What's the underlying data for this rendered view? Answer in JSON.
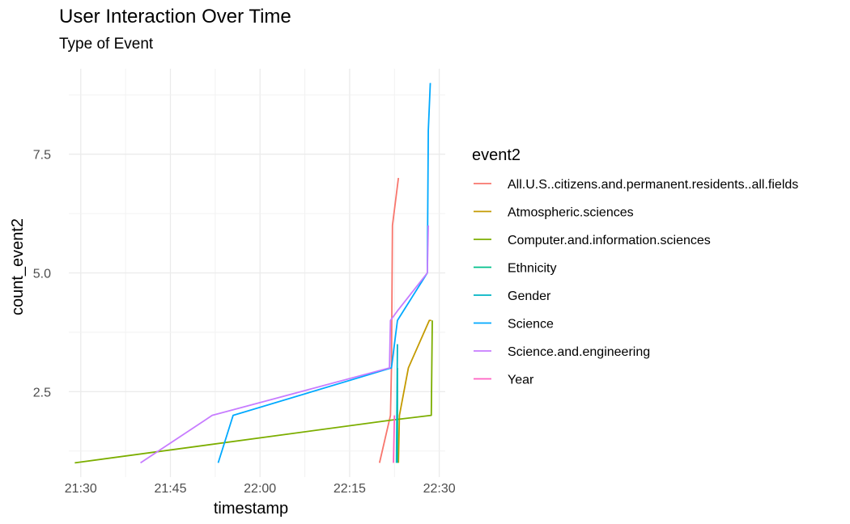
{
  "chart_data": {
    "type": "line",
    "title": "User Interaction Over Time",
    "subtitle": "Type of Event",
    "xlabel": "timestamp",
    "ylabel": "count_event2",
    "x_ticks": [
      "21:30",
      "21:45",
      "22:00",
      "22:15",
      "22:30"
    ],
    "y_ticks": [
      "2.5",
      "5.0",
      "7.5"
    ],
    "xlim": [
      "21:28",
      "22:31"
    ],
    "ylim": [
      0.7,
      9.3
    ],
    "grid": true,
    "legend": {
      "title": "event2",
      "position": "right",
      "entries": [
        {
          "name": "All.U.S..citizens.and.permanent.residents..all.fields",
          "color": "#F8766D"
        },
        {
          "name": "Atmospheric.sciences",
          "color": "#C49A00"
        },
        {
          "name": "Computer.and.information.sciences",
          "color": "#7CAE00"
        },
        {
          "name": "Ethnicity",
          "color": "#00C08B"
        },
        {
          "name": "Gender",
          "color": "#00B4C4"
        },
        {
          "name": "Science",
          "color": "#00A9FF"
        },
        {
          "name": "Science.and.engineering",
          "color": "#C77CFF"
        },
        {
          "name": "Year",
          "color": "#FF61C3"
        }
      ]
    },
    "series": [
      {
        "name": "All.U.S..citizens.and.permanent.residents..all.fields",
        "color": "#F8766D",
        "x": [
          "22:20:00",
          "22:21:50",
          "22:22:00",
          "22:22:10",
          "22:23:10"
        ],
        "y": [
          1,
          2,
          3,
          6,
          7
        ]
      },
      {
        "name": "Atmospheric.sciences",
        "color": "#C49A00",
        "x": [
          "22:23:10",
          "22:23:20",
          "22:24:50",
          "22:28:20",
          "22:28:40"
        ],
        "y": [
          1,
          2,
          3,
          4,
          4
        ]
      },
      {
        "name": "Computer.and.information.sciences",
        "color": "#7CAE00",
        "x": [
          "21:29:00",
          "22:22:00",
          "22:28:40",
          "22:28:50"
        ],
        "y": [
          1,
          1.9,
          2,
          4
        ]
      },
      {
        "name": "Ethnicity",
        "color": "#00C08B",
        "x": [
          "22:23:00",
          "22:23:00"
        ],
        "y": [
          1,
          3
        ]
      },
      {
        "name": "Gender",
        "color": "#00B4C4",
        "x": [
          "22:22:50",
          "22:23:00"
        ],
        "y": [
          1,
          3.5
        ]
      },
      {
        "name": "Science",
        "color": "#00A9FF",
        "x": [
          "21:53:00",
          "21:55:30",
          "22:22:00",
          "22:23:00",
          "22:28:00",
          "22:28:10",
          "22:28:30"
        ],
        "y": [
          1,
          2,
          3,
          4,
          5,
          8,
          9
        ]
      },
      {
        "name": "Science.and.engineering",
        "color": "#C77CFF",
        "x": [
          "21:40:00",
          "21:52:00",
          "22:21:40",
          "22:21:50",
          "22:23:00",
          "22:28:00",
          "22:28:10"
        ],
        "y": [
          1,
          2,
          3,
          4,
          4.2,
          5,
          6
        ]
      },
      {
        "name": "Year",
        "color": "#FF61C3",
        "x": [
          "22:22:20",
          "22:22:30"
        ],
        "y": [
          1,
          2
        ]
      }
    ]
  }
}
